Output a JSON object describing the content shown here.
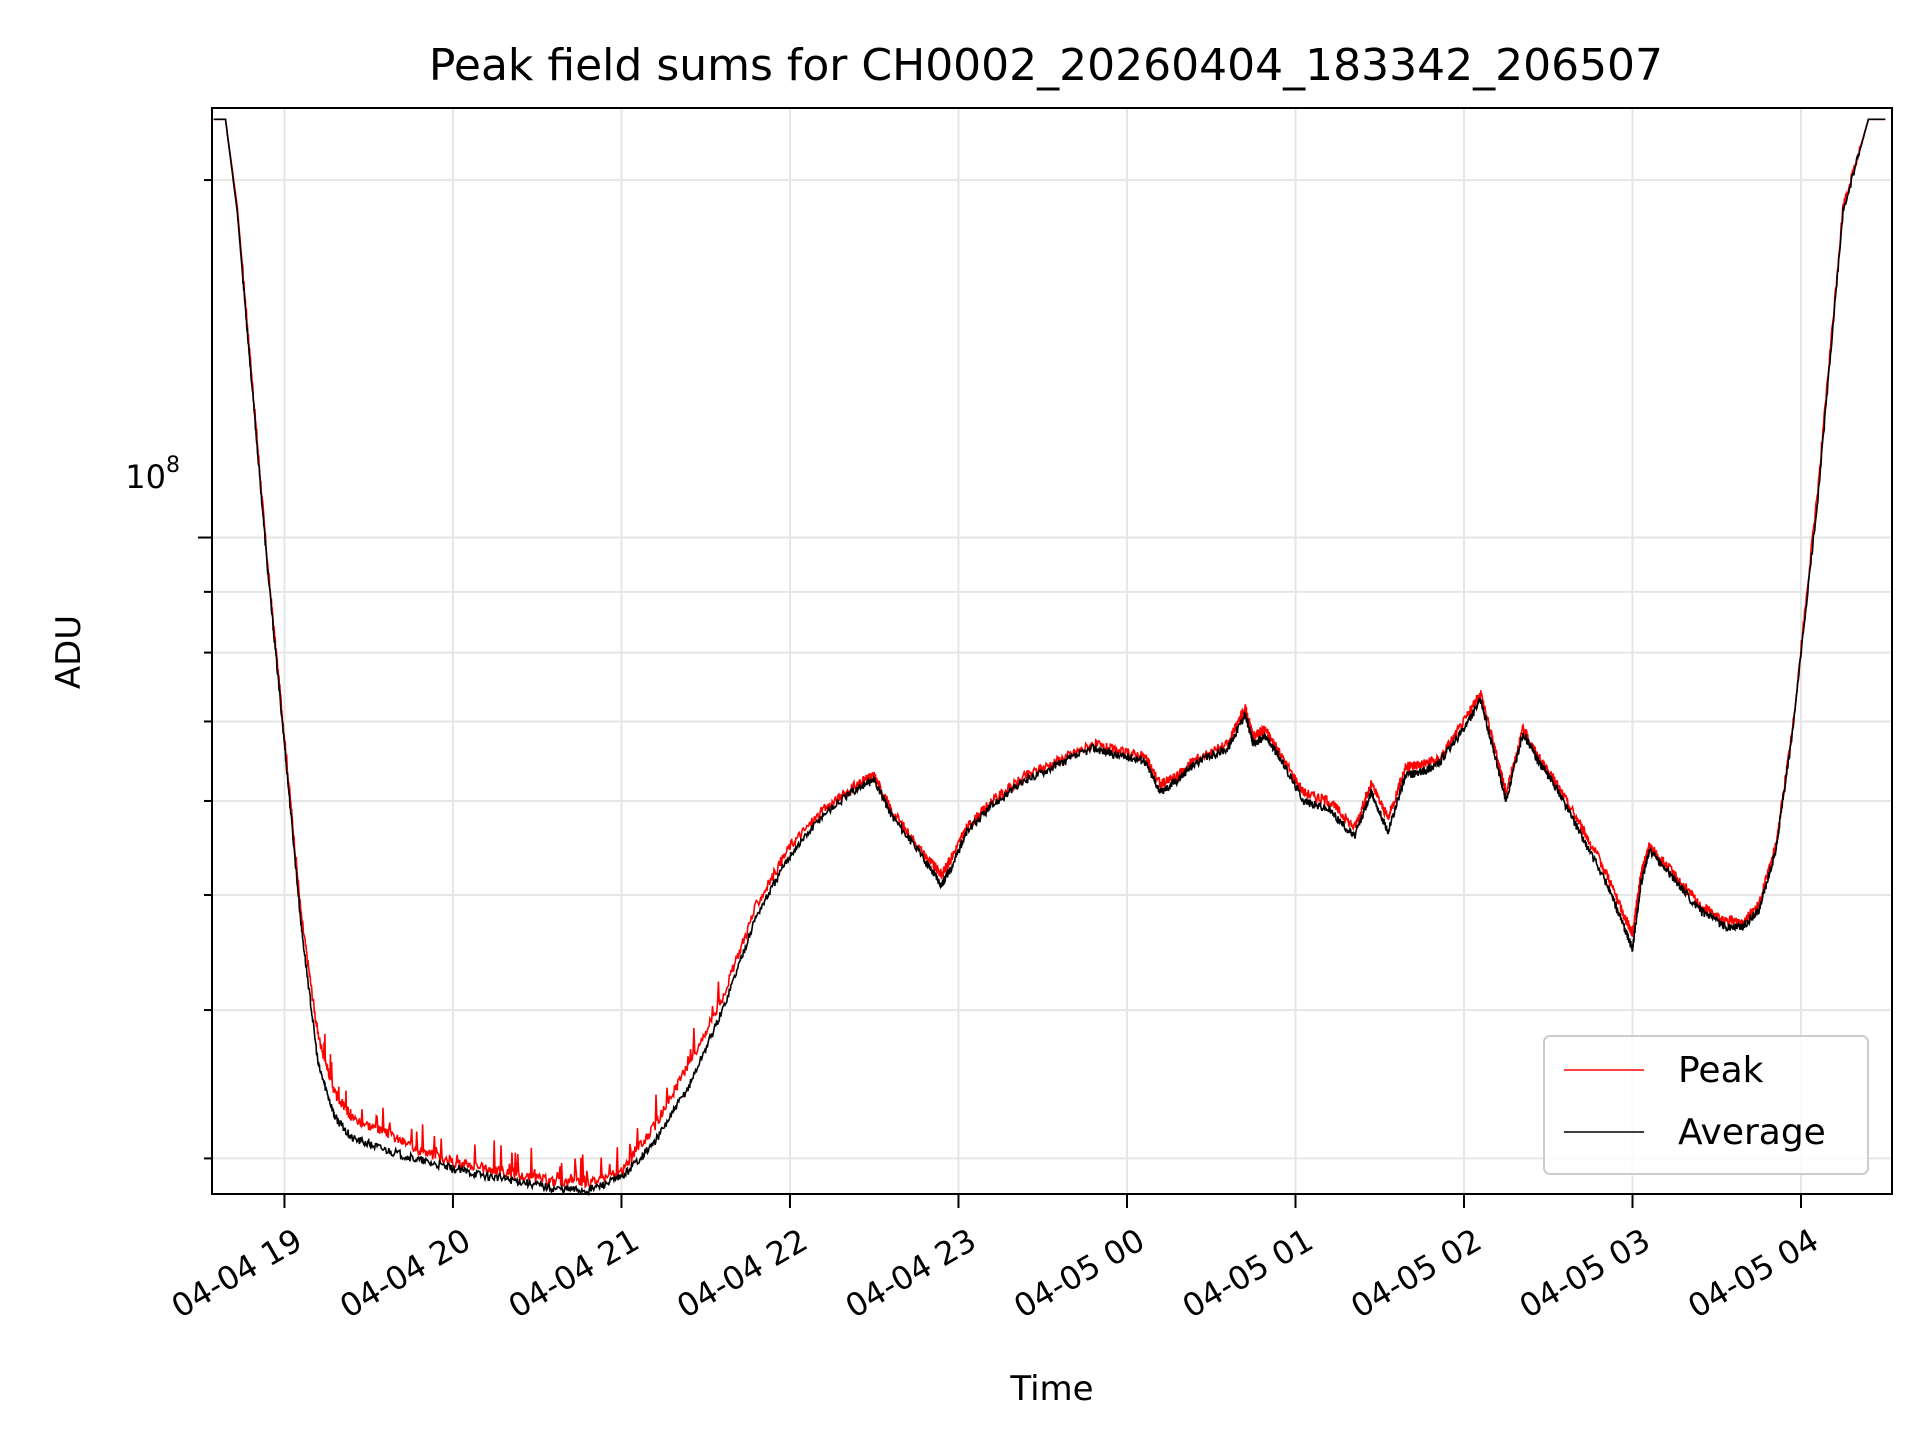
{
  "chart_data": {
    "type": "line",
    "title": "Peak field sums for CH0002_20260404_183342_206507",
    "xlabel": "Time",
    "ylabel": "ADU",
    "y_scale": "log",
    "ylim": [
      28000000,
      230000000
    ],
    "y_major_tick": {
      "value": 100000000,
      "label_base": "10",
      "label_exponent": "8"
    },
    "y_minor_ticks": [
      30000000,
      40000000,
      50000000,
      60000000,
      70000000,
      80000000,
      90000000,
      200000000
    ],
    "xlim_hours": [
      18.57,
      28.54
    ],
    "x_ticks": [
      {
        "hour": 19,
        "label": "04-04 19"
      },
      {
        "hour": 20,
        "label": "04-04 20"
      },
      {
        "hour": 21,
        "label": "04-04 21"
      },
      {
        "hour": 22,
        "label": "04-04 22"
      },
      {
        "hour": 23,
        "label": "04-04 23"
      },
      {
        "hour": 24,
        "label": "04-05 00"
      },
      {
        "hour": 25,
        "label": "04-05 01"
      },
      {
        "hour": 26,
        "label": "04-05 02"
      },
      {
        "hour": 27,
        "label": "04-05 03"
      },
      {
        "hour": 28,
        "label": "04-05 04"
      }
    ],
    "grid": true,
    "legend_position": "lower-right",
    "series": [
      {
        "name": "Peak",
        "color": "#ff0000",
        "x": [
          18.58,
          18.65,
          18.72,
          18.8,
          18.9,
          19.0,
          19.1,
          19.2,
          19.3,
          19.4,
          19.6,
          19.8,
          20.0,
          20.2,
          20.4,
          20.6,
          20.8,
          21.0,
          21.2,
          21.4,
          21.6,
          21.8,
          22.0,
          22.2,
          22.4,
          22.5,
          22.6,
          22.8,
          22.9,
          22.95,
          23.05,
          23.2,
          23.4,
          23.6,
          23.8,
          23.95,
          24.1,
          24.2,
          24.3,
          24.4,
          24.6,
          24.7,
          24.75,
          24.82,
          24.9,
          25.05,
          25.2,
          25.35,
          25.45,
          25.55,
          25.65,
          25.75,
          25.85,
          26.0,
          26.1,
          26.2,
          26.25,
          26.35,
          26.45,
          26.55,
          26.7,
          26.85,
          26.95,
          27.0,
          27.05,
          27.1,
          27.25,
          27.4,
          27.55,
          27.65,
          27.75,
          27.85,
          27.95,
          28.1,
          28.25,
          28.4,
          28.5
        ],
        "values": [
          225000000,
          225000000,
          190000000,
          140000000,
          95000000,
          68000000,
          48000000,
          38000000,
          34000000,
          32500000,
          31500000,
          30500000,
          29800000,
          29400000,
          29000000,
          28700000,
          28600000,
          29200000,
          32000000,
          36000000,
          41000000,
          49000000,
          55000000,
          59000000,
          62000000,
          63000000,
          59000000,
          54000000,
          52000000,
          53500000,
          57000000,
          60000000,
          63000000,
          65000000,
          67000000,
          66000000,
          65500000,
          62000000,
          63000000,
          65000000,
          67000000,
          72000000,
          68000000,
          69000000,
          66000000,
          61000000,
          60000000,
          57000000,
          62000000,
          58000000,
          64000000,
          64500000,
          65000000,
          70000000,
          74000000,
          65000000,
          61000000,
          69000000,
          65000000,
          62000000,
          57000000,
          52000000,
          48000000,
          46500000,
          52000000,
          55000000,
          52000000,
          49000000,
          47500000,
          47500000,
          49000000,
          55000000,
          69000000,
          110000000,
          190000000,
          225000000,
          225000000
        ]
      },
      {
        "name": "Average",
        "color": "#000000",
        "x": [
          18.58,
          18.65,
          18.72,
          18.8,
          18.9,
          19.0,
          19.1,
          19.2,
          19.3,
          19.4,
          19.6,
          19.8,
          20.0,
          20.2,
          20.4,
          20.6,
          20.8,
          21.0,
          21.2,
          21.4,
          21.6,
          21.8,
          22.0,
          22.2,
          22.4,
          22.5,
          22.6,
          22.8,
          22.9,
          22.95,
          23.05,
          23.2,
          23.4,
          23.6,
          23.8,
          23.95,
          24.1,
          24.2,
          24.3,
          24.4,
          24.6,
          24.7,
          24.75,
          24.82,
          24.9,
          25.05,
          25.2,
          25.35,
          25.45,
          25.55,
          25.65,
          25.75,
          25.85,
          26.0,
          26.1,
          26.2,
          26.25,
          26.35,
          26.45,
          26.55,
          26.7,
          26.85,
          26.95,
          27.0,
          27.05,
          27.1,
          27.25,
          27.4,
          27.55,
          27.65,
          27.75,
          27.85,
          27.95,
          28.1,
          28.25,
          28.4,
          28.5
        ],
        "values": [
          225000000,
          225000000,
          188000000,
          138000000,
          94000000,
          67000000,
          47000000,
          36000000,
          32500000,
          31200000,
          30500000,
          29900000,
          29400000,
          29000000,
          28700000,
          28300000,
          28200000,
          28900000,
          31000000,
          34500000,
          40000000,
          48000000,
          54000000,
          58500000,
          61500000,
          62500000,
          58500000,
          53500000,
          51000000,
          52500000,
          56500000,
          59500000,
          62500000,
          64500000,
          66500000,
          65500000,
          65000000,
          61000000,
          62500000,
          64500000,
          66500000,
          71000000,
          67000000,
          68000000,
          65500000,
          60000000,
          59000000,
          56000000,
          61000000,
          56500000,
          63000000,
          63500000,
          64500000,
          69000000,
          73000000,
          64000000,
          60000000,
          68500000,
          64500000,
          61500000,
          56000000,
          51000000,
          47000000,
          45000000,
          51000000,
          54500000,
          51500000,
          48500000,
          47000000,
          47000000,
          48500000,
          54500000,
          68500000,
          108000000,
          188000000,
          225000000,
          225000000
        ]
      }
    ]
  }
}
